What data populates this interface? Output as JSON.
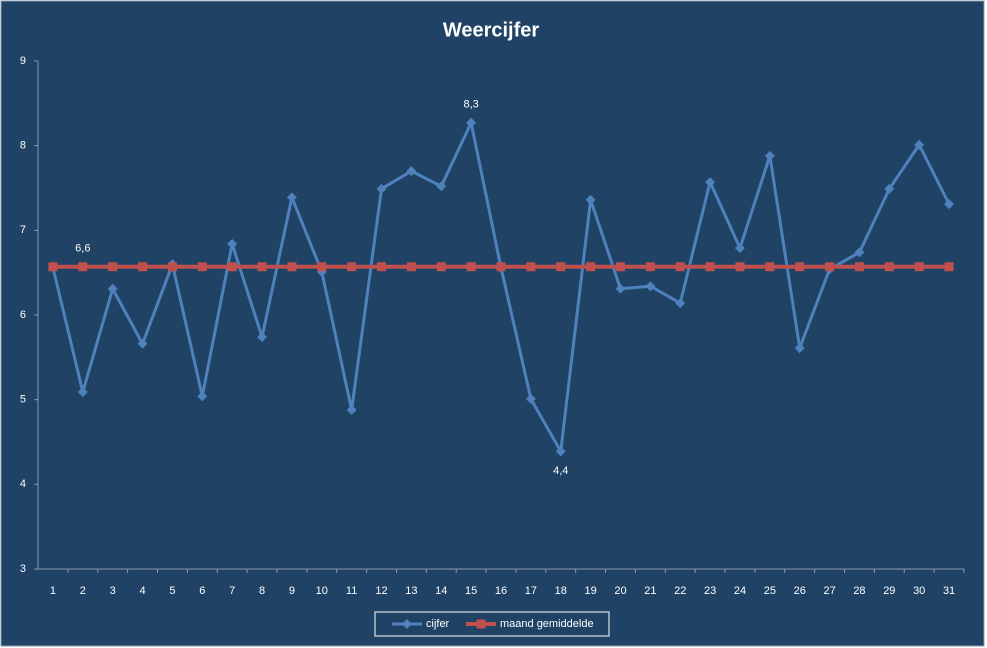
{
  "chart_data": {
    "type": "line",
    "title": "Weercijfer",
    "categories": [
      "1",
      "2",
      "3",
      "4",
      "5",
      "6",
      "7",
      "8",
      "9",
      "10",
      "11",
      "12",
      "13",
      "14",
      "15",
      "16",
      "17",
      "18",
      "19",
      "20",
      "21",
      "22",
      "23",
      "24",
      "25",
      "26",
      "27",
      "28",
      "29",
      "30",
      "31"
    ],
    "series": [
      {
        "name": "cijfer",
        "color": "#4f81bd",
        "marker": "diamond",
        "values": [
          6.56,
          5.09,
          6.31,
          5.66,
          6.6,
          5.04,
          6.84,
          5.74,
          7.39,
          6.51,
          4.88,
          7.49,
          7.7,
          7.52,
          8.27,
          6.56,
          5.01,
          4.39,
          7.36,
          6.31,
          6.34,
          6.14,
          7.57,
          6.79,
          7.88,
          5.61,
          6.54,
          6.74,
          7.49,
          8.01,
          7.31
        ],
        "value_labels": [
          null,
          null,
          null,
          null,
          null,
          null,
          null,
          null,
          null,
          null,
          null,
          null,
          null,
          null,
          "8,3",
          null,
          null,
          "4,4",
          null,
          null,
          null,
          null,
          null,
          null,
          null,
          null,
          null,
          null,
          null,
          null,
          null
        ]
      },
      {
        "name": "maand gemiddelde",
        "color": "#c0504d",
        "marker": "square",
        "values": [
          6.57,
          6.57,
          6.57,
          6.57,
          6.57,
          6.57,
          6.57,
          6.57,
          6.57,
          6.57,
          6.57,
          6.57,
          6.57,
          6.57,
          6.57,
          6.57,
          6.57,
          6.57,
          6.57,
          6.57,
          6.57,
          6.57,
          6.57,
          6.57,
          6.57,
          6.57,
          6.57,
          6.57,
          6.57,
          6.57,
          6.57
        ],
        "value_labels": [
          null,
          "6,6",
          null,
          null,
          null,
          null,
          null,
          null,
          null,
          null,
          null,
          null,
          null,
          null,
          null,
          null,
          null,
          null,
          null,
          null,
          null,
          null,
          null,
          null,
          null,
          null,
          null,
          null,
          null,
          null,
          null
        ]
      }
    ],
    "ylim": [
      3,
      9
    ],
    "yticks": [
      3,
      4,
      5,
      6,
      7,
      8,
      9
    ],
    "grid": false,
    "legend": "bottom"
  }
}
